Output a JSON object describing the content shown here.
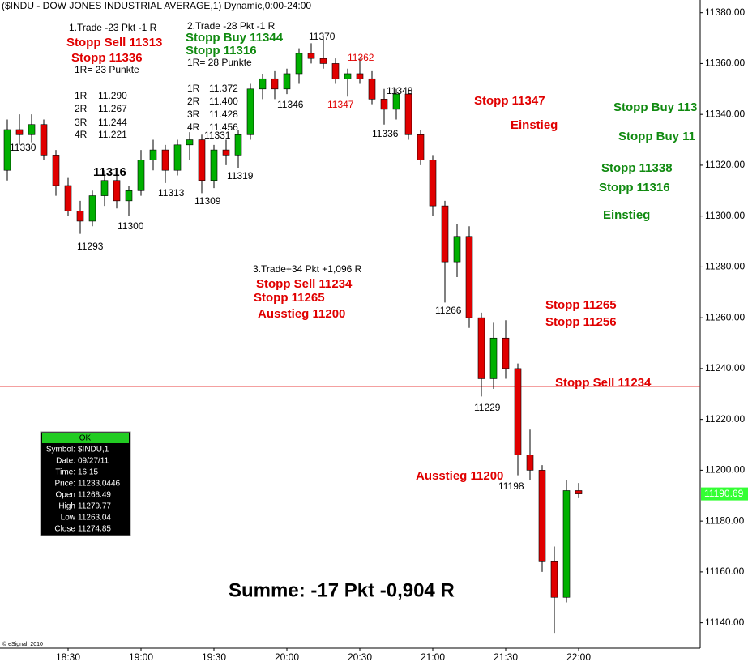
{
  "chart_data": {
    "type": "candlestick",
    "title": "($INDU - DOW JONES INDUSTRIAL AVERAGE,1) Dynamic,0:00-24:00",
    "footer": "© eSignal, 2010",
    "x": [
      "18:05",
      "18:10",
      "18:15",
      "18:20",
      "18:25",
      "18:30",
      "18:35",
      "18:40",
      "18:45",
      "18:50",
      "18:55",
      "19:00",
      "19:05",
      "19:10",
      "19:15",
      "19:20",
      "19:25",
      "19:30",
      "19:35",
      "19:40",
      "19:45",
      "19:50",
      "19:55",
      "20:00",
      "20:05",
      "20:10",
      "20:15",
      "20:20",
      "20:25",
      "20:30",
      "20:35",
      "20:40",
      "20:45",
      "20:50",
      "20:55",
      "21:00",
      "21:05",
      "21:10",
      "21:15",
      "21:20",
      "21:25",
      "21:30",
      "21:35",
      "21:40",
      "21:45",
      "21:50",
      "21:55",
      "22:00"
    ],
    "open": [
      11318,
      11334,
      11332,
      11336,
      11324,
      11312,
      11302,
      11298,
      11308,
      11314,
      11306,
      11310,
      11322,
      11326,
      11318,
      11328,
      11330,
      11314,
      11326,
      11324,
      11332,
      11350,
      11354,
      11350,
      11356,
      11364,
      11362,
      11360,
      11354,
      11356,
      11354,
      11346,
      11342,
      11348,
      11332,
      11322,
      11304,
      11282,
      11292,
      11260,
      11236,
      11252,
      11240,
      11206,
      11200,
      11164,
      11150,
      11192
    ],
    "high": [
      11338,
      11340,
      11340,
      11338,
      11326,
      11315,
      11306,
      11310,
      11318,
      11316,
      11312,
      11326,
      11330,
      11328,
      11330,
      11333,
      11332,
      11328,
      11330,
      11334,
      11352,
      11356,
      11357,
      11358,
      11366,
      11368,
      11371,
      11362,
      11358,
      11362,
      11357,
      11350,
      11350,
      11350,
      11334,
      11324,
      11306,
      11297,
      11296,
      11262,
      11258,
      11259,
      11242,
      11216,
      11202,
      11170,
      11196,
      11195
    ],
    "low": [
      11314,
      11328,
      11329,
      11322,
      11308,
      11300,
      11293,
      11296,
      11304,
      11303,
      11300,
      11308,
      11318,
      11313,
      11316,
      11322,
      11309,
      11311,
      11320,
      11319,
      11330,
      11346,
      11346,
      11348,
      11352,
      11360,
      11358,
      11352,
      11347,
      11352,
      11344,
      11336,
      11338,
      11330,
      11320,
      11300,
      11266,
      11276,
      11256,
      11229,
      11232,
      11236,
      11198,
      11196,
      11160,
      11136,
      11148,
      11189
    ],
    "close": [
      11334,
      11332,
      11336,
      11324,
      11312,
      11302,
      11298,
      11308,
      11314,
      11306,
      11310,
      11322,
      11326,
      11318,
      11328,
      11330,
      11314,
      11326,
      11324,
      11332,
      11350,
      11354,
      11350,
      11356,
      11364,
      11362,
      11360,
      11354,
      11356,
      11354,
      11346,
      11342,
      11348,
      11332,
      11322,
      11304,
      11282,
      11292,
      11260,
      11236,
      11252,
      11240,
      11206,
      11200,
      11164,
      11150,
      11192,
      11190.69
    ],
    "up_color": "#00b000",
    "down_color": "#e00000",
    "xlim": [
      "18:02",
      "22:50"
    ],
    "xticks": [
      "18:30",
      "19:00",
      "19:30",
      "20:00",
      "20:30",
      "21:00",
      "21:30",
      "22:00"
    ],
    "ylim": [
      11130,
      11385
    ],
    "yticks": [
      {
        "value": 11140,
        "label": "11140.00"
      },
      {
        "value": 11160,
        "label": "11160.00"
      },
      {
        "value": 11180,
        "label": "11180.00"
      },
      {
        "value": 11200,
        "label": "11200.00"
      },
      {
        "value": 11220,
        "label": "11220.00"
      },
      {
        "value": 11240,
        "label": "11240.00"
      },
      {
        "value": 11260,
        "label": "11260.00"
      },
      {
        "value": 11280,
        "label": "11280.00"
      },
      {
        "value": 11300,
        "label": "11300.00"
      },
      {
        "value": 11320,
        "label": "11320.00"
      },
      {
        "value": 11340,
        "label": "11340.00"
      },
      {
        "value": 11360,
        "label": "11360.00"
      },
      {
        "value": 11380,
        "label": "11380.00"
      }
    ],
    "hline": {
      "value": 11233,
      "color": "#e00000"
    },
    "last_price": 11190.69,
    "last_price_color": "#33ff33",
    "annotations": [
      "1.Trade -23 Pkt -1 R",
      "Stopp Sell 11313",
      "Stopp 11336",
      "1R= 23 Punkte",
      "1R",
      "11.290",
      "2R",
      "11.267",
      "3R",
      "11.244",
      "4R",
      "11.221",
      "2.Trade -28 Pkt -1 R",
      "Stopp Buy 11344",
      "Stopp 11316",
      "1R= 28 Punkte",
      "1R",
      "11.372",
      "2R",
      "11.400",
      "3R",
      "11.428",
      "4R",
      "11.456",
      "3.Trade+34 Pkt +1,096 R",
      "Stopp Sell 11234",
      "Stopp 11265",
      "Ausstieg 11200",
      "Stopp 11347",
      "Einstieg",
      "Stopp Buy 113",
      "Stopp Buy 11",
      "Stopp 11338",
      "Stopp 11316",
      "Einstieg",
      "Stopp 11265",
      "Stopp 11256",
      "Stopp Sell 11234",
      "Ausstieg 11200",
      "11330",
      "11316",
      "11293",
      "11300",
      "11313",
      "11331",
      "11309",
      "11319",
      "11346",
      "11370",
      "11347",
      "11362",
      "11348",
      "11336",
      "11266",
      "11229",
      "11198",
      "Summe: -17 Pkt -0,904 R"
    ],
    "info_box": {
      "header": "OK",
      "rows": [
        [
          "Symbol:",
          "$INDU,1"
        ],
        [
          "Date:",
          "09/27/11"
        ],
        [
          "Time:",
          "16:15"
        ],
        [
          "Price:",
          "11233.0446"
        ],
        [
          "Open",
          "11268.49"
        ],
        [
          "High",
          "11279.77"
        ],
        [
          "Low",
          "11263.04"
        ],
        [
          "Close",
          "11274.85"
        ]
      ]
    }
  }
}
